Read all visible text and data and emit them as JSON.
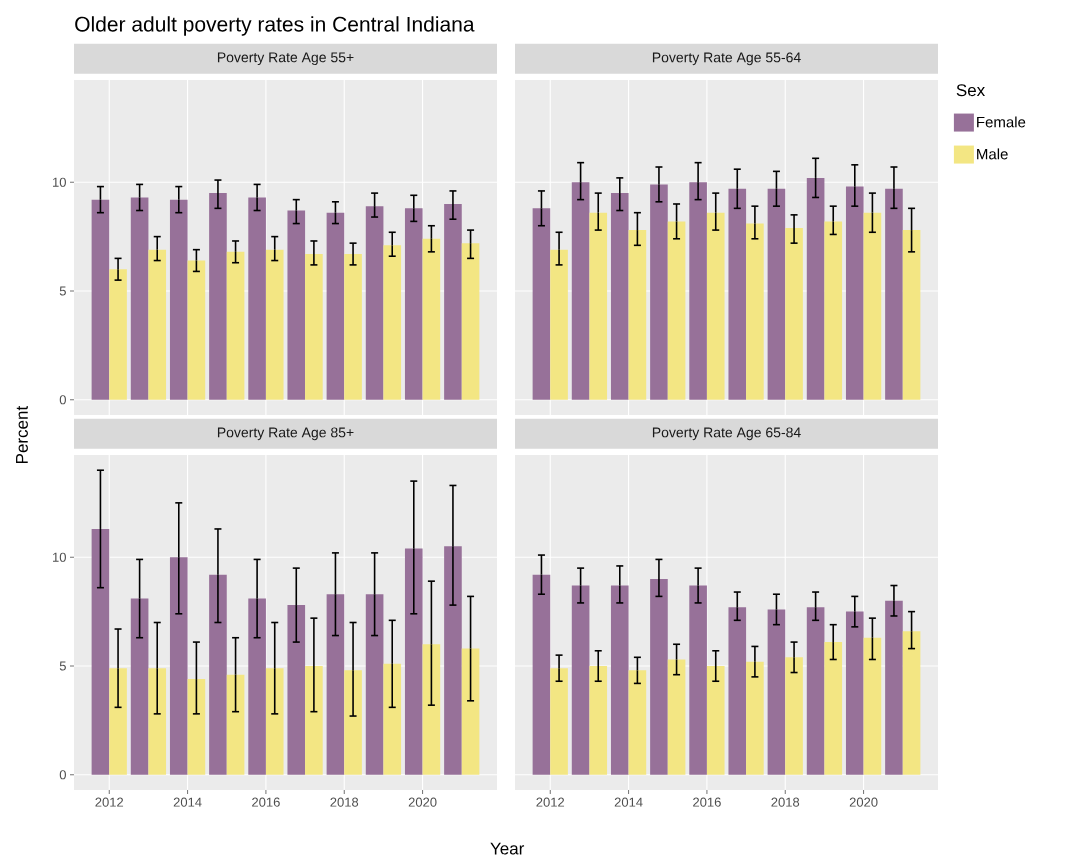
{
  "chart_data": [
    {
      "type": "bar",
      "title": "Older adult poverty rates in Central Indiana",
      "subtitle": "Poverty Rate Age 55+",
      "ylabel": "Percent",
      "x": [
        2012,
        2013,
        2014,
        2015,
        2016,
        2017,
        2018,
        2019,
        2020,
        2021
      ],
      "xlim": [
        2011.1,
        2021.9
      ],
      "xticks": [
        2012,
        2014,
        2016,
        2018,
        2020
      ],
      "ylim": [
        -0.7,
        14.7
      ],
      "yticks": [
        0,
        5,
        10
      ],
      "grid": true,
      "tick_labels": "y",
      "series": [
        {
          "color": "#977199",
          "values": [
            9.2,
            9.3,
            9.2,
            9.5,
            9.3,
            8.7,
            8.6,
            8.9,
            8.8,
            9.0
          ],
          "errors": [
            [
              8.6,
              9.8
            ],
            [
              8.7,
              9.9
            ],
            [
              8.6,
              9.8
            ],
            [
              8.8,
              10.1
            ],
            [
              8.7,
              9.9
            ],
            [
              8.1,
              9.2
            ],
            [
              8.1,
              9.1
            ],
            [
              8.4,
              9.5
            ],
            [
              8.2,
              9.4
            ],
            [
              8.3,
              9.6
            ]
          ]
        },
        {
          "color": "#f3e683",
          "values": [
            6.0,
            6.9,
            6.4,
            6.8,
            6.9,
            6.7,
            6.7,
            7.1,
            7.4,
            7.2
          ],
          "errors": [
            [
              5.5,
              6.5
            ],
            [
              6.4,
              7.5
            ],
            [
              5.9,
              6.9
            ],
            [
              6.3,
              7.3
            ],
            [
              6.4,
              7.5
            ],
            [
              6.2,
              7.3
            ],
            [
              6.2,
              7.2
            ],
            [
              6.6,
              7.7
            ],
            [
              6.8,
              8.0
            ],
            [
              6.5,
              7.8
            ]
          ]
        }
      ]
    },
    {
      "type": "bar",
      "title": "Poverty Rate Age 55-64",
      "x": [
        2012,
        2013,
        2014,
        2015,
        2016,
        2017,
        2018,
        2019,
        2020,
        2021
      ],
      "xlim": [
        2011.1,
        2021.9
      ],
      "xticks": [
        2012,
        2014,
        2016,
        2018,
        2020
      ],
      "ylim": [
        -0.7,
        14.7
      ],
      "yticks": [
        0,
        5,
        10
      ],
      "grid": true,
      "tick_labels": false,
      "legend": "right",
      "legend_title": "Sex",
      "series": [
        {
          "name": "Female",
          "color": "#977199",
          "values": [
            8.8,
            10.0,
            9.5,
            9.9,
            10.0,
            9.7,
            9.7,
            10.2,
            9.8,
            9.7
          ],
          "errors": [
            [
              8.0,
              9.6
            ],
            [
              9.2,
              10.9
            ],
            [
              8.7,
              10.2
            ],
            [
              9.1,
              10.7
            ],
            [
              9.2,
              10.9
            ],
            [
              8.8,
              10.6
            ],
            [
              8.9,
              10.5
            ],
            [
              9.3,
              11.1
            ],
            [
              8.9,
              10.8
            ],
            [
              8.8,
              10.7
            ]
          ]
        },
        {
          "name": "Male",
          "color": "#f3e683",
          "values": [
            6.9,
            8.6,
            7.8,
            8.2,
            8.6,
            8.1,
            7.9,
            8.2,
            8.6,
            7.8
          ],
          "errors": [
            [
              6.2,
              7.7
            ],
            [
              7.8,
              9.5
            ],
            [
              7.1,
              8.6
            ],
            [
              7.4,
              9.0
            ],
            [
              7.8,
              9.5
            ],
            [
              7.4,
              8.9
            ],
            [
              7.2,
              8.5
            ],
            [
              7.6,
              8.9
            ],
            [
              7.7,
              9.5
            ],
            [
              6.8,
              8.8
            ]
          ]
        }
      ]
    },
    {
      "type": "bar",
      "title": "Poverty Rate Age 85+",
      "xlabel": "Year",
      "x": [
        2012,
        2013,
        2014,
        2015,
        2016,
        2017,
        2018,
        2019,
        2020,
        2021
      ],
      "xlim": [
        2011.1,
        2021.9
      ],
      "xticks": [
        2012,
        2014,
        2016,
        2018,
        2020
      ],
      "ylim": [
        -0.7,
        14.7
      ],
      "yticks": [
        0,
        5,
        10
      ],
      "grid": true,
      "series": [
        {
          "color": "#977199",
          "values": [
            11.3,
            8.1,
            10.0,
            9.2,
            8.1,
            7.8,
            8.3,
            8.3,
            10.4,
            10.5
          ],
          "errors": [
            [
              8.6,
              14.0
            ],
            [
              6.3,
              9.9
            ],
            [
              7.4,
              12.5
            ],
            [
              7.0,
              11.3
            ],
            [
              6.3,
              9.9
            ],
            [
              6.1,
              9.5
            ],
            [
              6.4,
              10.2
            ],
            [
              6.4,
              10.2
            ],
            [
              7.4,
              13.5
            ],
            [
              7.8,
              13.3
            ]
          ]
        },
        {
          "color": "#f3e683",
          "values": [
            4.9,
            4.9,
            4.4,
            4.6,
            4.9,
            5.0,
            4.8,
            5.1,
            6.0,
            5.8
          ],
          "errors": [
            [
              3.1,
              6.7
            ],
            [
              2.8,
              7.0
            ],
            [
              2.8,
              6.1
            ],
            [
              2.9,
              6.3
            ],
            [
              2.8,
              7.0
            ],
            [
              2.9,
              7.2
            ],
            [
              2.7,
              7.0
            ],
            [
              3.1,
              7.1
            ],
            [
              3.2,
              8.9
            ],
            [
              3.4,
              8.2
            ]
          ]
        }
      ]
    },
    {
      "type": "bar",
      "title": "Poverty Rate Age 65-84",
      "x": [
        2012,
        2013,
        2014,
        2015,
        2016,
        2017,
        2018,
        2019,
        2020,
        2021
      ],
      "xlim": [
        2011.1,
        2021.9
      ],
      "xticks": [
        2012,
        2014,
        2016,
        2018,
        2020
      ],
      "ylim": [
        -0.7,
        14.7
      ],
      "yticks": [
        0,
        5,
        10
      ],
      "grid": true,
      "tick_labels": "x",
      "series": [
        {
          "color": "#977199",
          "values": [
            9.2,
            8.7,
            8.7,
            9.0,
            8.7,
            7.7,
            7.6,
            7.7,
            7.5,
            8.0
          ],
          "errors": [
            [
              8.3,
              10.1
            ],
            [
              7.9,
              9.5
            ],
            [
              7.9,
              9.6
            ],
            [
              8.2,
              9.9
            ],
            [
              7.9,
              9.5
            ],
            [
              7.1,
              8.4
            ],
            [
              6.9,
              8.3
            ],
            [
              7.1,
              8.4
            ],
            [
              6.8,
              8.2
            ],
            [
              7.3,
              8.7
            ]
          ]
        },
        {
          "color": "#f3e683",
          "values": [
            4.9,
            5.0,
            4.8,
            5.3,
            5.0,
            5.2,
            5.4,
            6.1,
            6.3,
            6.6
          ],
          "errors": [
            [
              4.3,
              5.5
            ],
            [
              4.3,
              5.7
            ],
            [
              4.2,
              5.4
            ],
            [
              4.6,
              6.0
            ],
            [
              4.3,
              5.7
            ],
            [
              4.5,
              5.9
            ],
            [
              4.7,
              6.1
            ],
            [
              5.3,
              6.9
            ],
            [
              5.3,
              7.2
            ],
            [
              5.8,
              7.5
            ]
          ]
        }
      ]
    }
  ]
}
